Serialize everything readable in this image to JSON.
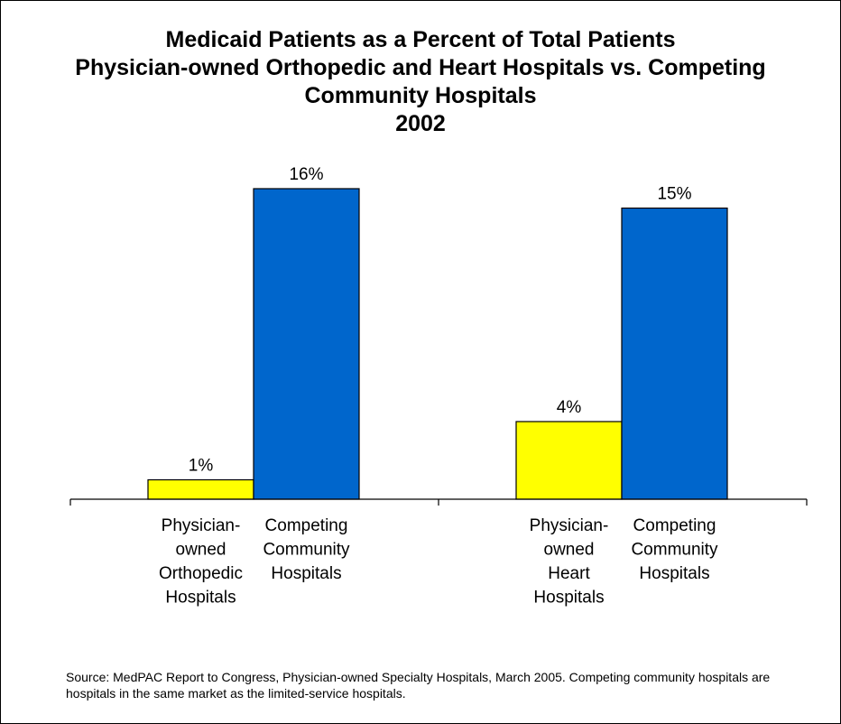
{
  "chart_data": {
    "type": "bar",
    "title": [
      "Medicaid Patients as a Percent of Total Patients",
      "Physician-owned Orthopedic and Heart Hospitals vs. Competing",
      "Community Hospitals",
      "2002"
    ],
    "xlabel": "",
    "ylabel": "",
    "ylim": [
      0,
      17
    ],
    "grid": false,
    "legend": "none",
    "bars": [
      {
        "group": 0,
        "label_lines": [
          "Physician-",
          "owned",
          "Orthopedic",
          "Hospitals"
        ],
        "value": 1,
        "value_label": "1%",
        "color": "#FFFF00"
      },
      {
        "group": 0,
        "label_lines": [
          "Competing",
          "Community",
          "Hospitals"
        ],
        "value": 16,
        "value_label": "16%",
        "color": "#0066CC"
      },
      {
        "group": 1,
        "label_lines": [
          "Physician-",
          "owned",
          "Heart",
          "Hospitals"
        ],
        "value": 4,
        "value_label": "4%",
        "color": "#FFFF00"
      },
      {
        "group": 1,
        "label_lines": [
          "Competing",
          "Community",
          "Hospitals"
        ],
        "value": 15,
        "value_label": "15%",
        "color": "#0066CC"
      }
    ]
  },
  "source_note": "Source: MedPAC Report to Congress, Physician-owned Specialty Hospitals, March 2005.  Competing community hospitals are hospitals in the same market as the limited-service hospitals."
}
